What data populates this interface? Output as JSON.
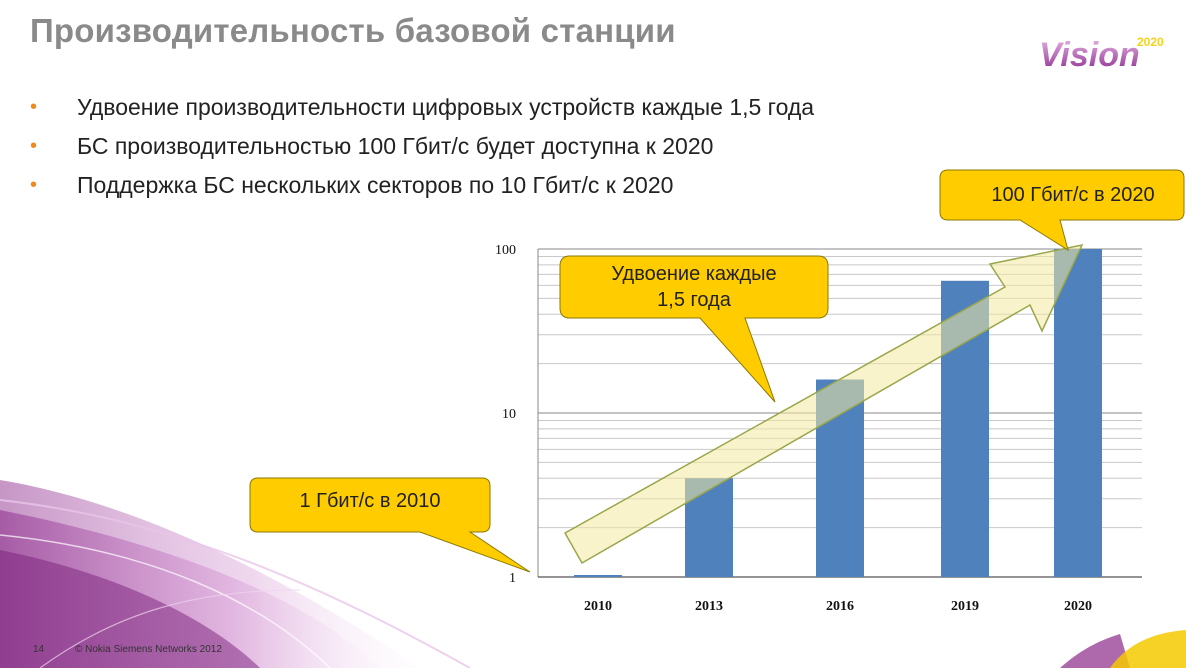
{
  "slide": {
    "title": "Производительность базовой станции",
    "logo_text": "Vision",
    "logo_year": "2020",
    "bullets": [
      "Удвоение производительности цифровых устройств каждые 1,5 года",
      "БС производительностью 100 Гбит/с будет доступна к 2020",
      "Поддержка БС нескольких секторов по 10 Гбит/с к 2020"
    ],
    "bullet_color": "#f08a1c",
    "page_number": "14",
    "copyright": "© Nokia Siemens Networks 2012"
  },
  "callouts": {
    "start": "1 Гбит/с в 2010",
    "middle_line1": "Удвоение каждые",
    "middle_line2": "1,5 года",
    "end": "100 Гбит/с в 2020"
  },
  "colors": {
    "bar": "#4f81bd",
    "callout_fill": "#ffcc00",
    "arrow_fill": "#f3e9a0",
    "title_gray": "#8a8a8a"
  },
  "chart_data": {
    "type": "bar",
    "scale": "log",
    "categories": [
      "2010",
      "2013",
      "2016",
      "2019",
      "2020"
    ],
    "values": [
      1,
      4,
      16,
      64,
      100
    ],
    "y_ticks": [
      "1",
      "10",
      "100"
    ],
    "ylim": [
      1,
      100
    ],
    "grid": true,
    "legend": "none"
  }
}
